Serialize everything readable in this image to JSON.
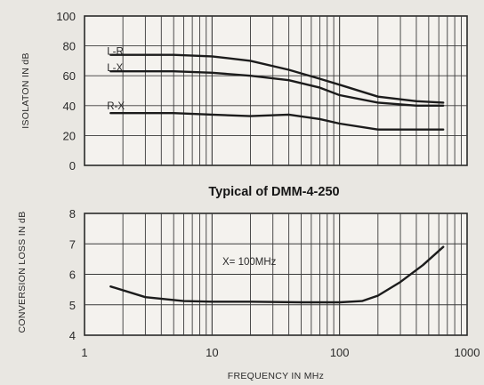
{
  "chart_data": [
    {
      "type": "line",
      "title": "",
      "ylabel": "ISOLATON IN dB",
      "xlabel": "",
      "xscale": "log",
      "xlim": [
        1,
        1000
      ],
      "ylim": [
        0,
        100
      ],
      "yticks": [
        "0",
        "20",
        "40",
        "60",
        "80",
        "100"
      ],
      "grid": true,
      "series": [
        {
          "name": "L-R",
          "x": [
            1.6,
            5,
            10,
            20,
            40,
            70,
            100,
            200,
            400,
            650
          ],
          "y": [
            74,
            74,
            73,
            70,
            64,
            58,
            54,
            46,
            43,
            42
          ]
        },
        {
          "name": "L-X",
          "x": [
            1.6,
            5,
            10,
            20,
            40,
            70,
            100,
            200,
            400,
            650
          ],
          "y": [
            63,
            63,
            62,
            60,
            57,
            52,
            47,
            42,
            40,
            40
          ]
        },
        {
          "name": "R-X",
          "x": [
            1.6,
            5,
            10,
            20,
            40,
            70,
            100,
            200,
            400,
            650
          ],
          "y": [
            35,
            35,
            34,
            33,
            34,
            31,
            28,
            24,
            24,
            24
          ]
        }
      ]
    },
    {
      "type": "line",
      "title": "Typical of DMM-4-250",
      "ylabel": "CONVERSION LOSS IN dB",
      "xlabel": "FREQUENCY IN MHz",
      "xscale": "log",
      "xlim": [
        1,
        1000
      ],
      "ylim": [
        4,
        8
      ],
      "yticks": [
        "4",
        "5",
        "6",
        "7",
        "8"
      ],
      "xticks": [
        "1",
        "10",
        "100",
        "1000"
      ],
      "grid": true,
      "annotation": "X= 100MHz",
      "series": [
        {
          "x": [
            1.6,
            3,
            6,
            10,
            20,
            50,
            100,
            150,
            200,
            300,
            450,
            650
          ],
          "y": [
            5.6,
            5.25,
            5.12,
            5.1,
            5.1,
            5.08,
            5.08,
            5.12,
            5.3,
            5.75,
            6.3,
            6.9
          ]
        }
      ]
    }
  ]
}
